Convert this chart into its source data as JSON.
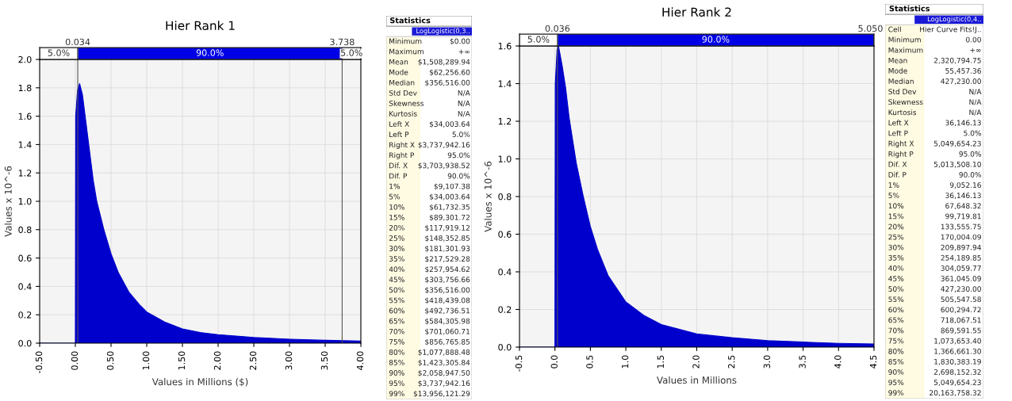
{
  "chart_data": [
    {
      "type": "area",
      "title": "Hier Rank 1",
      "xlabel": "Values in Millions ($)",
      "ylabel": "Values x 10^-6",
      "x": [
        -0.5,
        0,
        0.005,
        0.03,
        0.06,
        0.1,
        0.15,
        0.2,
        0.25,
        0.3,
        0.4,
        0.5,
        0.6,
        0.75,
        0.9,
        1.0,
        1.25,
        1.5,
        1.75,
        2.0,
        2.5,
        3.0,
        3.5,
        4.0
      ],
      "series": [
        {
          "color": "#0000cc",
          "values": [
            0,
            0,
            1.6,
            1.78,
            1.83,
            1.75,
            1.55,
            1.35,
            1.15,
            1.0,
            0.8,
            0.63,
            0.5,
            0.36,
            0.27,
            0.22,
            0.15,
            0.1,
            0.075,
            0.06,
            0.04,
            0.028,
            0.02,
            0.015
          ]
        }
      ],
      "xlim": [
        -0.5,
        4.0
      ],
      "ylim": [
        0,
        2.0
      ],
      "xticks": [
        {
          "value": -0.5,
          "label": "-0.50"
        },
        {
          "value": 0,
          "label": "0.00"
        },
        {
          "value": 0.5,
          "label": "0.50"
        },
        {
          "value": 1.0,
          "label": "1.00"
        },
        {
          "value": 1.5,
          "label": "1.50"
        },
        {
          "value": 2.0,
          "label": "2.00"
        },
        {
          "value": 2.5,
          "label": "2.50"
        },
        {
          "value": 3.0,
          "label": "3.00"
        },
        {
          "value": 3.5,
          "label": "3.50"
        },
        {
          "value": 4.0,
          "label": "4.00"
        }
      ],
      "yticks": [
        {
          "value": 0,
          "label": "0.0"
        },
        0.2,
        0.4,
        0.6,
        0.8,
        {
          "value": 1,
          "label": "1.0"
        },
        1.2,
        1.4,
        1.6,
        1.8,
        {
          "value": 2,
          "label": "2.0"
        }
      ],
      "grid": true,
      "annotations": [
        "5.0%",
        "90.0%",
        "5.0%"
      ],
      "ref_lines": [
        {
          "axis": "x",
          "value": 0.034,
          "label": "0.034",
          "color": "#555555"
        },
        {
          "axis": "x",
          "value": 3.738,
          "label": "3.738",
          "color": "#555555"
        }
      ]
    },
    {
      "type": "other",
      "title": "Statistics",
      "subtitle": "LogLogistic(0,3..",
      "annotations": [
        "Minimum",
        "$0.00",
        "Maximum",
        "+∞",
        "Mean",
        "$1,508,289.94",
        "Mode",
        "$62,256.60",
        "Median",
        "$356,516.00",
        "Std Dev",
        "N/A",
        "Skewness",
        "N/A",
        "Kurtosis",
        "N/A",
        "Left X",
        "$34,003.64",
        "Left P",
        "5.0%",
        "Right X",
        "$3,737,942.16",
        "Right P",
        "95.0%",
        "Dif. X",
        "$3,703,938.52",
        "Dif. P",
        "90.0%",
        "1%",
        "$9,107.38",
        "5%",
        "$34,003.64",
        "10%",
        "$61,732.35",
        "15%",
        "$89,301.72",
        "20%",
        "$117,919.12",
        "25%",
        "$148,352.85",
        "30%",
        "$181,301.93",
        "35%",
        "$217,529.28",
        "40%",
        "$257,954.62",
        "45%",
        "$303,756.66",
        "50%",
        "$356,516.00",
        "55%",
        "$418,439.08",
        "60%",
        "$492,736.51",
        "65%",
        "$584,305.98",
        "70%",
        "$701,060.71",
        "75%",
        "$856,765.85",
        "80%",
        "$1,077,888.48",
        "85%",
        "$1,423,305.84",
        "90%",
        "$2,058,947.50",
        "95%",
        "$3,737,942.16",
        "99%",
        "$13,956,121.29"
      ]
    },
    {
      "type": "area",
      "title": "Hier Rank 2",
      "xlabel": "Values in Millions",
      "ylabel": "Values x 10^-6",
      "x": [
        -0.5,
        0,
        0.005,
        0.03,
        0.05,
        0.1,
        0.15,
        0.2,
        0.25,
        0.3,
        0.4,
        0.5,
        0.6,
        0.75,
        1.0,
        1.25,
        1.5,
        2.0,
        2.5,
        3.0,
        3.5,
        4.0,
        4.5
      ],
      "series": [
        {
          "color": "#0000cc",
          "values": [
            0,
            0,
            1.4,
            1.58,
            1.6,
            1.5,
            1.38,
            1.22,
            1.1,
            0.98,
            0.8,
            0.64,
            0.52,
            0.38,
            0.24,
            0.17,
            0.12,
            0.07,
            0.05,
            0.035,
            0.027,
            0.02,
            0.017
          ]
        }
      ],
      "xlim": [
        -0.5,
        4.5
      ],
      "ylim": [
        0,
        1.6
      ],
      "xticks": [
        -0.5,
        {
          "value": 0,
          "label": "0.0"
        },
        0.5,
        {
          "value": 1,
          "label": "1.0"
        },
        1.5,
        {
          "value": 2,
          "label": "2.0"
        },
        2.5,
        {
          "value": 3,
          "label": "3.0"
        },
        3.5,
        {
          "value": 4,
          "label": "4.0"
        },
        4.5
      ],
      "yticks": [
        {
          "value": 0,
          "label": "0.0"
        },
        0.2,
        0.4,
        0.6,
        0.8,
        {
          "value": 1,
          "label": "1.0"
        },
        1.2,
        1.4,
        1.6
      ],
      "grid": true,
      "annotations": [
        "5.0%",
        "90.0%",
        "5.050"
      ],
      "ref_lines": [
        {
          "axis": "x",
          "value": 0.036,
          "label": "0.036",
          "color": "#555555"
        }
      ]
    },
    {
      "type": "other",
      "title": "Statistics",
      "subtitle": "LogLogistic(0,4..",
      "annotations": [
        "Cell",
        "Hier Curve Fits!J..",
        "Minimum",
        "0.00",
        "Maximum",
        "+∞",
        "Mean",
        "2,320,794.75",
        "Mode",
        "55,457.36",
        "Median",
        "427,230.00",
        "Std Dev",
        "N/A",
        "Skewness",
        "N/A",
        "Kurtosis",
        "N/A",
        "Left X",
        "36,146.13",
        "Left P",
        "5.0%",
        "Right X",
        "5,049,654.23",
        "Right P",
        "95.0%",
        "Dif. X",
        "5,013,508.10",
        "Dif. P",
        "90.0%",
        "1%",
        "9,052.16",
        "5%",
        "36,146.13",
        "10%",
        "67,648.32",
        "15%",
        "99,719.81",
        "20%",
        "133,555.75",
        "25%",
        "170,004.09",
        "30%",
        "209,897.94",
        "35%",
        "254,189.85",
        "40%",
        "304,059.77",
        "45%",
        "361,045.09",
        "50%",
        "427,230.00",
        "55%",
        "505,547.58",
        "60%",
        "600,294.72",
        "65%",
        "718,067.51",
        "70%",
        "869,591.55",
        "75%",
        "1,073,653.40",
        "80%",
        "1,366,661.30",
        "85%",
        "1,830,383.19",
        "90%",
        "2,698,152.32",
        "95%",
        "5,049,654.23",
        "99%",
        "20,163,758.32"
      ]
    }
  ]
}
